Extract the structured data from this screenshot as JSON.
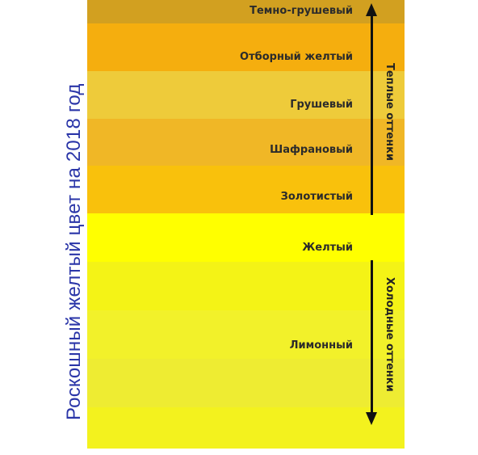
{
  "title": "Роскошный желтый цвет на 2018 год",
  "colors": {
    "title_text": "#2a35a8",
    "temno_grushevy": "#d2a020",
    "otborny_zhelty": "#f5ae0e",
    "grushevy": "#eecb3a",
    "shafranovy": "#f0b726",
    "zolotisty": "#f9c10c",
    "zhelty": "#ffff00",
    "limonny_1": "#f4f316",
    "limonny_2": "#f2f12a",
    "limonny_3": "#eeec32",
    "limonny_4": "#f3f21e"
  },
  "bands": [
    {
      "label": "Темно-грушевый"
    },
    {
      "label": "Отборный желтый"
    },
    {
      "label": "Грушевый"
    },
    {
      "label": "Шафрановый"
    },
    {
      "label": "Золотистый"
    },
    {
      "label": "Желтый"
    },
    {
      "label": "Лимонный"
    }
  ],
  "warm_label": "Теплые оттенки",
  "cold_label": "Холодные оттенки"
}
